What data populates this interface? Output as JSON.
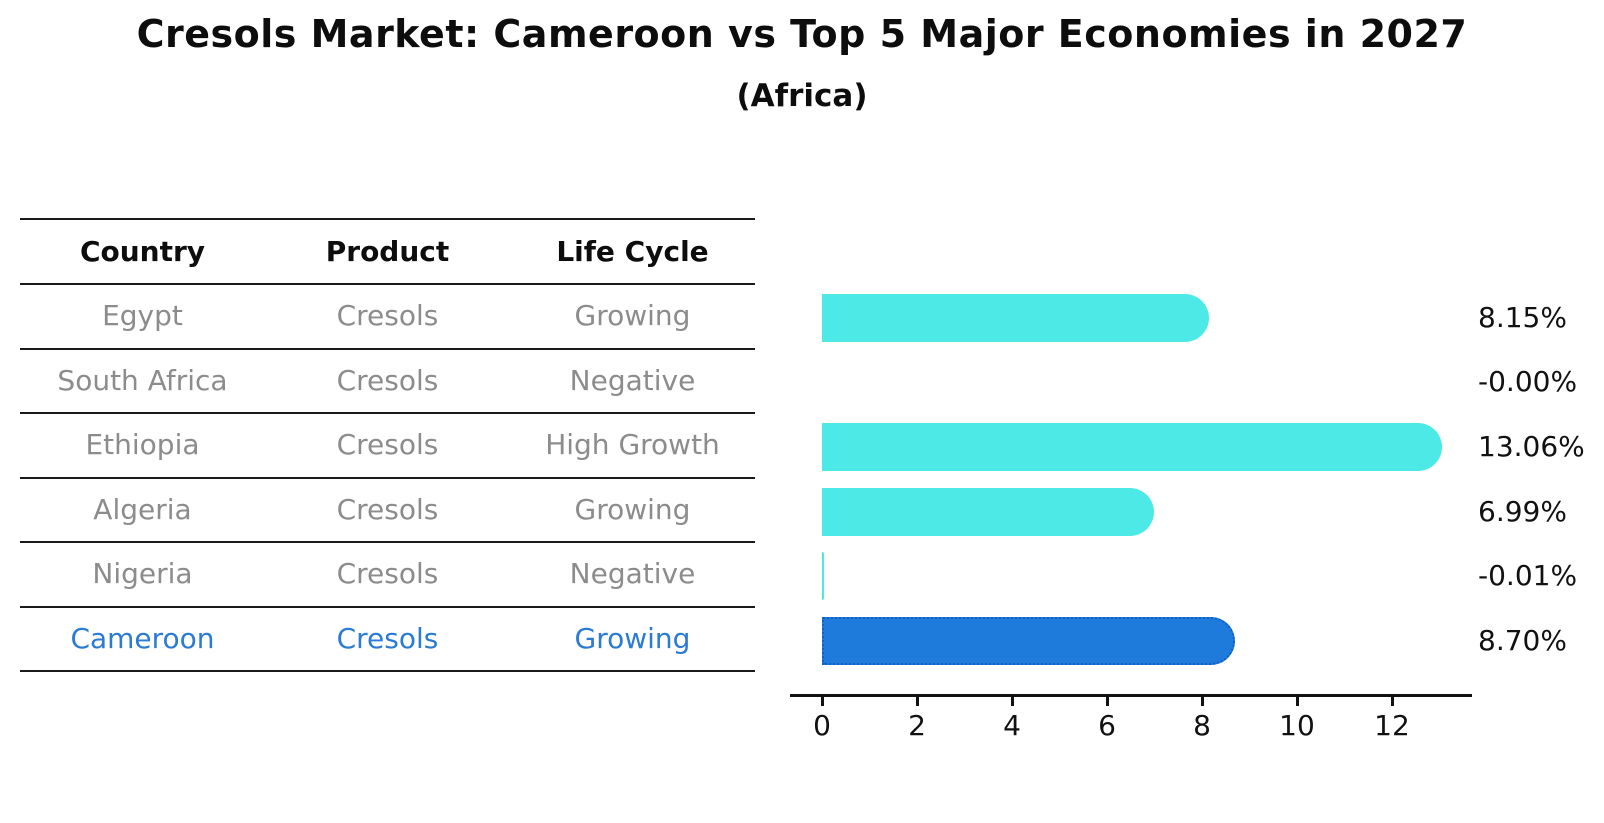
{
  "title": "Cresols Market: Cameroon vs Top 5 Major Economies in 2027",
  "subtitle": "(Africa)",
  "table": {
    "headers": [
      "Country",
      "Product",
      "Life Cycle"
    ],
    "rows": [
      {
        "country": "Egypt",
        "product": "Cresols",
        "life_cycle": "Growing",
        "highlight": false
      },
      {
        "country": "South Africa",
        "product": "Cresols",
        "life_cycle": "Negative",
        "highlight": false
      },
      {
        "country": "Ethiopia",
        "product": "Cresols",
        "life_cycle": "High Growth",
        "highlight": false
      },
      {
        "country": "Algeria",
        "product": "Cresols",
        "life_cycle": "Growing",
        "highlight": false
      },
      {
        "country": "Nigeria",
        "product": "Cresols",
        "life_cycle": "Negative",
        "highlight": false
      },
      {
        "country": "Cameroon",
        "product": "Cresols",
        "life_cycle": "Growing",
        "highlight": true
      }
    ]
  },
  "chart_data": {
    "type": "bar",
    "orientation": "horizontal",
    "title": "Cresols Market: Cameroon vs Top 5 Major Economies in 2027",
    "subtitle": "(Africa)",
    "categories": [
      "Egypt",
      "South Africa",
      "Ethiopia",
      "Algeria",
      "Nigeria",
      "Cameroon"
    ],
    "values": [
      8.15,
      -0.0,
      13.06,
      6.99,
      -0.01,
      8.7
    ],
    "value_labels": [
      "8.15%",
      "-0.00%",
      "13.06%",
      "6.99%",
      "-0.01%",
      "8.70%"
    ],
    "x_ticks": [
      0,
      2,
      4,
      6,
      8,
      10,
      12
    ],
    "xlim": [
      0,
      13.7
    ],
    "grid": false,
    "legend": "none",
    "bar_color": "#4de9e6",
    "highlight_color": "#1e7bdc",
    "highlight_index": 5,
    "highlight_border_style": "dotted"
  },
  "colors": {
    "background": "#ffffff",
    "table_line": "#1a1a1a",
    "table_text_muted": "#8c8c8c",
    "table_text_header": "#0d0d0d",
    "highlight_text": "#2b7bd4",
    "axis": "#111111"
  }
}
